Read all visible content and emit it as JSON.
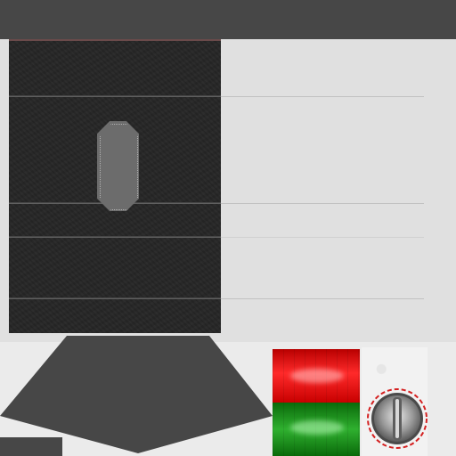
{
  "texture": {
    "top_bar_color": "#474747",
    "panel_color": "#262626",
    "light_area_color": "#e0e0e0",
    "pill_color": "#6c6c6c"
  },
  "indicators": {
    "red_color": "#e01010",
    "green_color": "#1a9a1a"
  },
  "knob": {
    "ring_color": "#d42020",
    "icon": "dial-knob-icon"
  }
}
